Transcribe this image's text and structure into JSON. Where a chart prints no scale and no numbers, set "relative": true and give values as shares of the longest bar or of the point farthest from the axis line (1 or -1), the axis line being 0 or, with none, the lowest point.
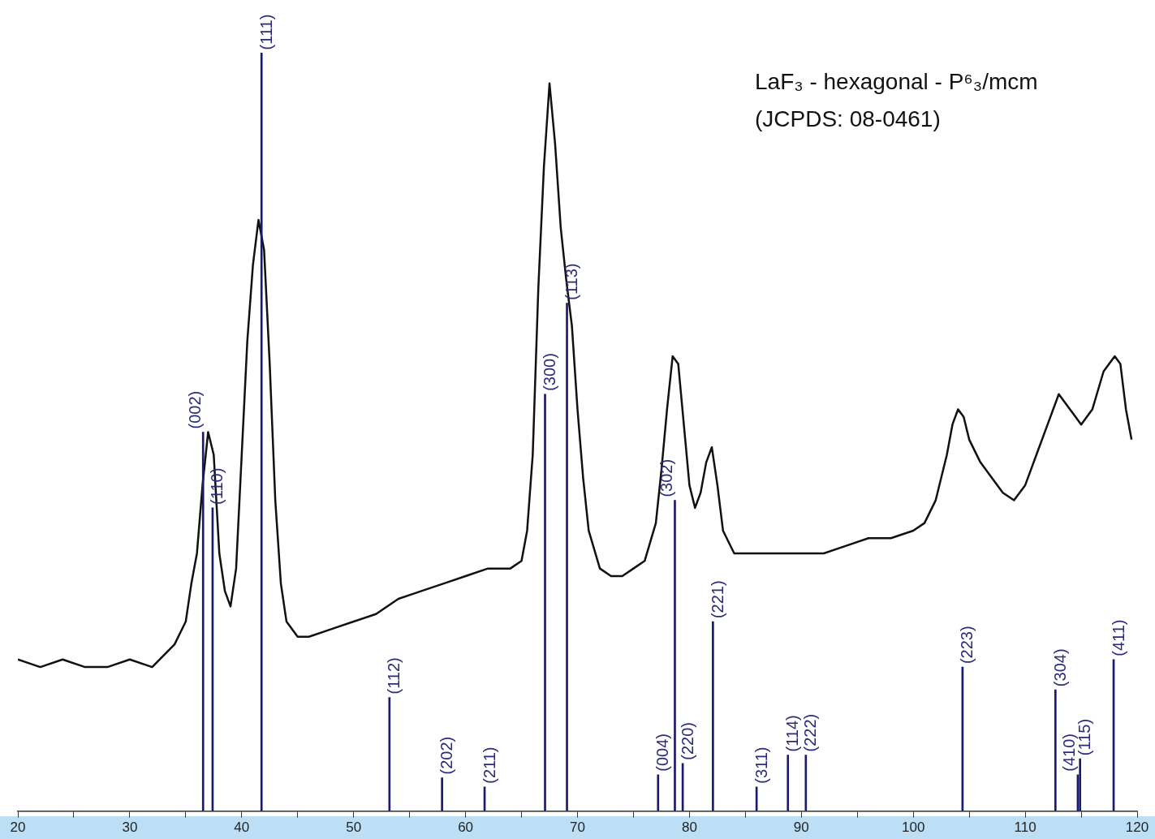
{
  "chart_data": {
    "type": "line",
    "relative": true,
    "xlim": [
      20,
      120
    ],
    "xticks": [
      20,
      {
        "value": 25,
        "label": null
      },
      30,
      {
        "value": 35,
        "label": null
      },
      40,
      {
        "value": 45,
        "label": null
      },
      50,
      {
        "value": 55,
        "label": null
      },
      60,
      {
        "value": 65,
        "label": null
      },
      70,
      {
        "value": 75,
        "label": null
      },
      80,
      {
        "value": 85,
        "label": null
      },
      90,
      {
        "value": 95,
        "label": null
      },
      100,
      {
        "value": 105,
        "label": null
      },
      110,
      {
        "value": 115,
        "label": null
      },
      120
    ],
    "tick_labels": "x",
    "grid": false,
    "legend": false,
    "marker": "none",
    "line_style": "solid",
    "x": [
      20,
      22,
      24,
      26,
      28,
      30,
      32,
      34,
      35,
      35.5,
      36,
      36.5,
      37,
      37.5,
      38,
      38.5,
      39,
      39.5,
      40,
      40.5,
      41,
      41.5,
      42,
      42.5,
      43,
      43.5,
      44,
      45,
      46,
      48,
      50,
      52,
      54,
      56,
      58,
      60,
      62,
      64,
      65,
      65.5,
      66,
      66.5,
      67,
      67.5,
      68,
      68.5,
      69,
      69.5,
      70,
      70.5,
      71,
      72,
      73,
      74,
      75,
      76,
      77,
      77.5,
      78,
      78.5,
      79,
      79.5,
      80,
      80.5,
      81,
      81.5,
      82,
      82.5,
      83,
      84,
      86,
      88,
      90,
      92,
      94,
      96,
      98,
      100,
      101,
      102,
      103,
      103.5,
      104,
      104.5,
      105,
      106,
      107,
      108,
      109,
      110,
      111,
      112,
      113,
      114,
      115,
      116,
      117,
      118,
      118.5,
      119,
      119.5
    ],
    "series": [
      {
        "color": "#111111",
        "values": [
          0.2,
          0.19,
          0.2,
          0.19,
          0.19,
          0.2,
          0.19,
          0.22,
          0.25,
          0.3,
          0.34,
          0.43,
          0.5,
          0.47,
          0.34,
          0.29,
          0.27,
          0.32,
          0.47,
          0.62,
          0.72,
          0.78,
          0.74,
          0.59,
          0.41,
          0.3,
          0.25,
          0.23,
          0.23,
          0.24,
          0.25,
          0.26,
          0.28,
          0.29,
          0.3,
          0.31,
          0.32,
          0.32,
          0.33,
          0.37,
          0.47,
          0.69,
          0.85,
          0.96,
          0.88,
          0.77,
          0.7,
          0.64,
          0.53,
          0.44,
          0.37,
          0.32,
          0.31,
          0.31,
          0.32,
          0.33,
          0.38,
          0.45,
          0.53,
          0.6,
          0.59,
          0.51,
          0.43,
          0.4,
          0.42,
          0.46,
          0.48,
          0.43,
          0.37,
          0.34,
          0.34,
          0.34,
          0.34,
          0.34,
          0.35,
          0.36,
          0.36,
          0.37,
          0.38,
          0.41,
          0.47,
          0.51,
          0.53,
          0.52,
          0.49,
          0.46,
          0.44,
          0.42,
          0.41,
          0.43,
          0.47,
          0.51,
          0.55,
          0.53,
          0.51,
          0.53,
          0.58,
          0.6,
          0.59,
          0.53,
          0.49
        ]
      },
      {
        "type": "bar",
        "color": "#1a1a6e",
        "x": [
          36.55,
          37.4,
          41.77,
          53.2,
          57.9,
          61.7,
          67.1,
          69.06,
          77.2,
          78.7,
          79.4,
          82.1,
          86.0,
          88.8,
          90.4,
          104.4,
          112.7,
          114.7,
          114.9,
          117.9
        ],
        "values": [
          0.5,
          0.4,
          1.0,
          0.15,
          0.044,
          0.032,
          0.55,
          0.67,
          0.048,
          0.41,
          0.063,
          0.25,
          0.032,
          0.074,
          0.074,
          0.19,
          0.16,
          0.048,
          0.069,
          0.2
        ]
      }
    ],
    "annotations": [
      {
        "text": "(002)",
        "x": 36.55,
        "y": 0.5
      },
      {
        "text": "(110)",
        "x": 37.4,
        "y": 0.4
      },
      {
        "text": "(111)",
        "x": 41.77,
        "y": 1.0
      },
      {
        "text": "(112)",
        "x": 53.2,
        "y": 0.15
      },
      {
        "text": "(202)",
        "x": 57.9,
        "y": 0.044
      },
      {
        "text": "(211)",
        "x": 61.7,
        "y": 0.032
      },
      {
        "text": "(300)",
        "x": 67.1,
        "y": 0.55
      },
      {
        "text": "(113)",
        "x": 69.06,
        "y": 0.67
      },
      {
        "text": "(004)",
        "x": 77.2,
        "y": 0.048
      },
      {
        "text": "(302)",
        "x": 78.7,
        "y": 0.41
      },
      {
        "text": "(220)",
        "x": 79.4,
        "y": 0.063
      },
      {
        "text": "(221)",
        "x": 82.1,
        "y": 0.25
      },
      {
        "text": "(311)",
        "x": 86.0,
        "y": 0.032
      },
      {
        "text": "(114)",
        "x": 88.8,
        "y": 0.074
      },
      {
        "text": "(222)",
        "x": 90.4,
        "y": 0.074
      },
      {
        "text": "(223)",
        "x": 104.4,
        "y": 0.19
      },
      {
        "text": "(304)",
        "x": 112.7,
        "y": 0.16
      },
      {
        "text": "(410)",
        "x": 114.7,
        "y": 0.048
      },
      {
        "text": "(115)",
        "x": 114.9,
        "y": 0.069
      },
      {
        "text": "(411)",
        "x": 117.9,
        "y": 0.2
      },
      "LaF₃ - hexagonal - P⁶₃/mcm",
      "(JCPDS: 08-0461)"
    ]
  }
}
